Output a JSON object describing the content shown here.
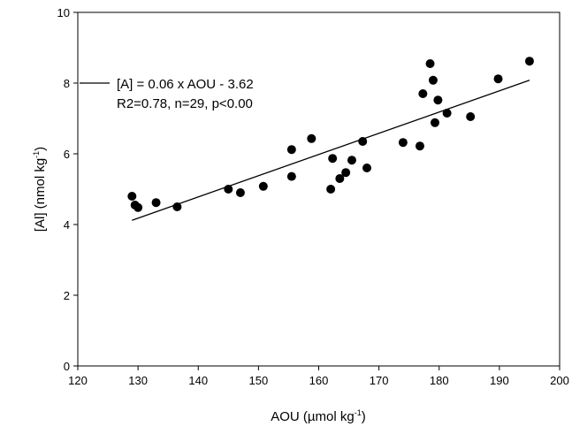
{
  "chart_data": {
    "type": "scatter",
    "title": "",
    "xlabel": {
      "main": "AOU (µmol kg",
      "sup": "-1",
      "tail": ")"
    },
    "ylabel": {
      "main": "[Al] (nmol kg",
      "sup": "-1",
      "tail": ")"
    },
    "xlim": [
      120,
      200
    ],
    "ylim": [
      0,
      10
    ],
    "xticks": [
      120,
      130,
      140,
      150,
      160,
      170,
      180,
      190,
      200
    ],
    "yticks": [
      0,
      2,
      4,
      6,
      8,
      10
    ],
    "grid": false,
    "legend_position": "top-left",
    "points": [
      {
        "x": 129.0,
        "y": 4.8
      },
      {
        "x": 129.5,
        "y": 4.55
      },
      {
        "x": 130.0,
        "y": 4.48
      },
      {
        "x": 133.0,
        "y": 4.62
      },
      {
        "x": 136.5,
        "y": 4.5
      },
      {
        "x": 145.0,
        "y": 5.0
      },
      {
        "x": 147.0,
        "y": 4.9
      },
      {
        "x": 150.8,
        "y": 5.08
      },
      {
        "x": 155.5,
        "y": 6.12
      },
      {
        "x": 155.5,
        "y": 5.36
      },
      {
        "x": 158.8,
        "y": 6.43
      },
      {
        "x": 162.0,
        "y": 5.0
      },
      {
        "x": 162.3,
        "y": 5.87
      },
      {
        "x": 163.5,
        "y": 5.3
      },
      {
        "x": 164.5,
        "y": 5.47
      },
      {
        "x": 165.5,
        "y": 5.82
      },
      {
        "x": 167.3,
        "y": 6.35
      },
      {
        "x": 168.0,
        "y": 5.6
      },
      {
        "x": 174.0,
        "y": 6.32
      },
      {
        "x": 176.8,
        "y": 6.22
      },
      {
        "x": 177.3,
        "y": 7.7
      },
      {
        "x": 178.5,
        "y": 8.55
      },
      {
        "x": 179.0,
        "y": 8.08
      },
      {
        "x": 179.3,
        "y": 6.88
      },
      {
        "x": 179.8,
        "y": 7.52
      },
      {
        "x": 181.3,
        "y": 7.15
      },
      {
        "x": 185.2,
        "y": 7.05
      },
      {
        "x": 189.8,
        "y": 8.12
      },
      {
        "x": 195.0,
        "y": 8.62
      }
    ],
    "fit": {
      "slope": 0.06,
      "intercept": -3.62,
      "x_range": [
        129,
        195
      ]
    },
    "legend": {
      "line1": "[A] = 0.06 x AOU - 3.62",
      "line2": "R2=0.78, n=29, p<0.00"
    },
    "colors": {
      "marker": "#000000",
      "line": "#000000",
      "axis": "#000000"
    }
  }
}
